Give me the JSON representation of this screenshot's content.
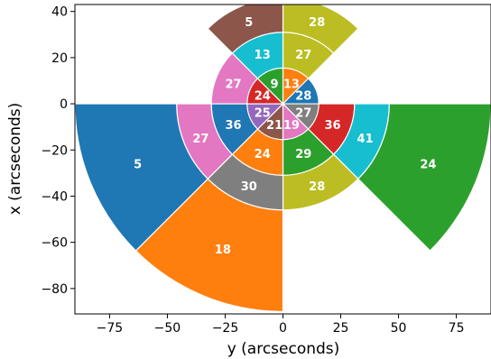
{
  "chart_data": {
    "type": "polar-sector",
    "xlabel": "y (arcseconds)",
    "ylabel": "x (arcseconds)",
    "xlim": [
      -90,
      90
    ],
    "ylim": [
      -91,
      43
    ],
    "x_ticks": [
      -75,
      -50,
      -25,
      0,
      25,
      50,
      75
    ],
    "x_tick_labels": [
      "−75",
      "−50",
      "−25",
      "0",
      "25",
      "50",
      "75"
    ],
    "y_ticks": [
      -80,
      -60,
      -40,
      -20,
      0,
      20,
      40
    ],
    "y_tick_labels": [
      "−80",
      "−60",
      "−40",
      "−20",
      "0",
      "20",
      "40"
    ],
    "grid": false,
    "note_angles": "compass angles in degrees: 0 = +x (up), 90 = +y (right)",
    "segments": [
      {
        "r_inner": 0,
        "r_outer": 15.5,
        "angle_start": 0,
        "angle_end": 45,
        "label": "13",
        "color": "#ff7f0e"
      },
      {
        "r_inner": 0,
        "r_outer": 15.5,
        "angle_start": 45,
        "angle_end": 90,
        "label": "28",
        "color": "#1f77b4"
      },
      {
        "r_inner": 0,
        "r_outer": 15.5,
        "angle_start": 90,
        "angle_end": 135,
        "label": "27",
        "color": "#7f7f7f"
      },
      {
        "r_inner": 0,
        "r_outer": 15.5,
        "angle_start": 135,
        "angle_end": 180,
        "label": "19",
        "color": "#e377c2"
      },
      {
        "r_inner": 0,
        "r_outer": 15.5,
        "angle_start": 180,
        "angle_end": 225,
        "label": "21",
        "color": "#8c564b"
      },
      {
        "r_inner": 0,
        "r_outer": 15.5,
        "angle_start": 225,
        "angle_end": 270,
        "label": "25",
        "color": "#9467bd"
      },
      {
        "r_inner": 0,
        "r_outer": 15.5,
        "angle_start": 270,
        "angle_end": 315,
        "label": "24",
        "color": "#d62728"
      },
      {
        "r_inner": 0,
        "r_outer": 15.5,
        "angle_start": 315,
        "angle_end": 360,
        "label": "9",
        "color": "#2ca02c"
      },
      {
        "r_inner": 15.5,
        "r_outer": 31,
        "angle_start": 0,
        "angle_end": 45,
        "label": "27",
        "color": "#bcbd22"
      },
      {
        "r_inner": 15.5,
        "r_outer": 31,
        "angle_start": 90,
        "angle_end": 135,
        "label": "36",
        "color": "#d62728"
      },
      {
        "r_inner": 15.5,
        "r_outer": 31,
        "angle_start": 135,
        "angle_end": 180,
        "label": "29",
        "color": "#2ca02c"
      },
      {
        "r_inner": 15.5,
        "r_outer": 31,
        "angle_start": 180,
        "angle_end": 225,
        "label": "24",
        "color": "#ff7f0e"
      },
      {
        "r_inner": 15.5,
        "r_outer": 31,
        "angle_start": 225,
        "angle_end": 270,
        "label": "36",
        "color": "#1f77b4"
      },
      {
        "r_inner": 15.5,
        "r_outer": 31,
        "angle_start": 270,
        "angle_end": 315,
        "label": "27",
        "color": "#e377c2"
      },
      {
        "r_inner": 15.5,
        "r_outer": 31,
        "angle_start": 315,
        "angle_end": 360,
        "label": "13",
        "color": "#17becf"
      },
      {
        "r_inner": 31,
        "r_outer": 46,
        "angle_start": 0,
        "angle_end": 45,
        "label": "28",
        "color": "#bcbd22"
      },
      {
        "r_inner": 31,
        "r_outer": 46,
        "angle_start": 90,
        "angle_end": 135,
        "label": "41",
        "color": "#17becf"
      },
      {
        "r_inner": 31,
        "r_outer": 46,
        "angle_start": 135,
        "angle_end": 180,
        "label": "28",
        "color": "#bcbd22"
      },
      {
        "r_inner": 31,
        "r_outer": 46,
        "angle_start": 180,
        "angle_end": 225,
        "label": "30",
        "color": "#7f7f7f"
      },
      {
        "r_inner": 31,
        "r_outer": 46,
        "angle_start": 225,
        "angle_end": 270,
        "label": "27",
        "color": "#e377c2"
      },
      {
        "r_inner": 31,
        "r_outer": 46,
        "angle_start": 315,
        "angle_end": 360,
        "label": "5",
        "color": "#8c564b"
      },
      {
        "r_inner": 46,
        "r_outer": 90,
        "angle_start": 90,
        "angle_end": 135,
        "label": "24",
        "color": "#2ca02c"
      },
      {
        "r_inner": 46,
        "r_outer": 90,
        "angle_start": 180,
        "angle_end": 225,
        "label": "18",
        "color": "#ff7f0e"
      },
      {
        "r_inner": 46,
        "r_outer": 90,
        "angle_start": 225,
        "angle_end": 270,
        "label": "5",
        "color": "#1f77b4"
      }
    ]
  }
}
